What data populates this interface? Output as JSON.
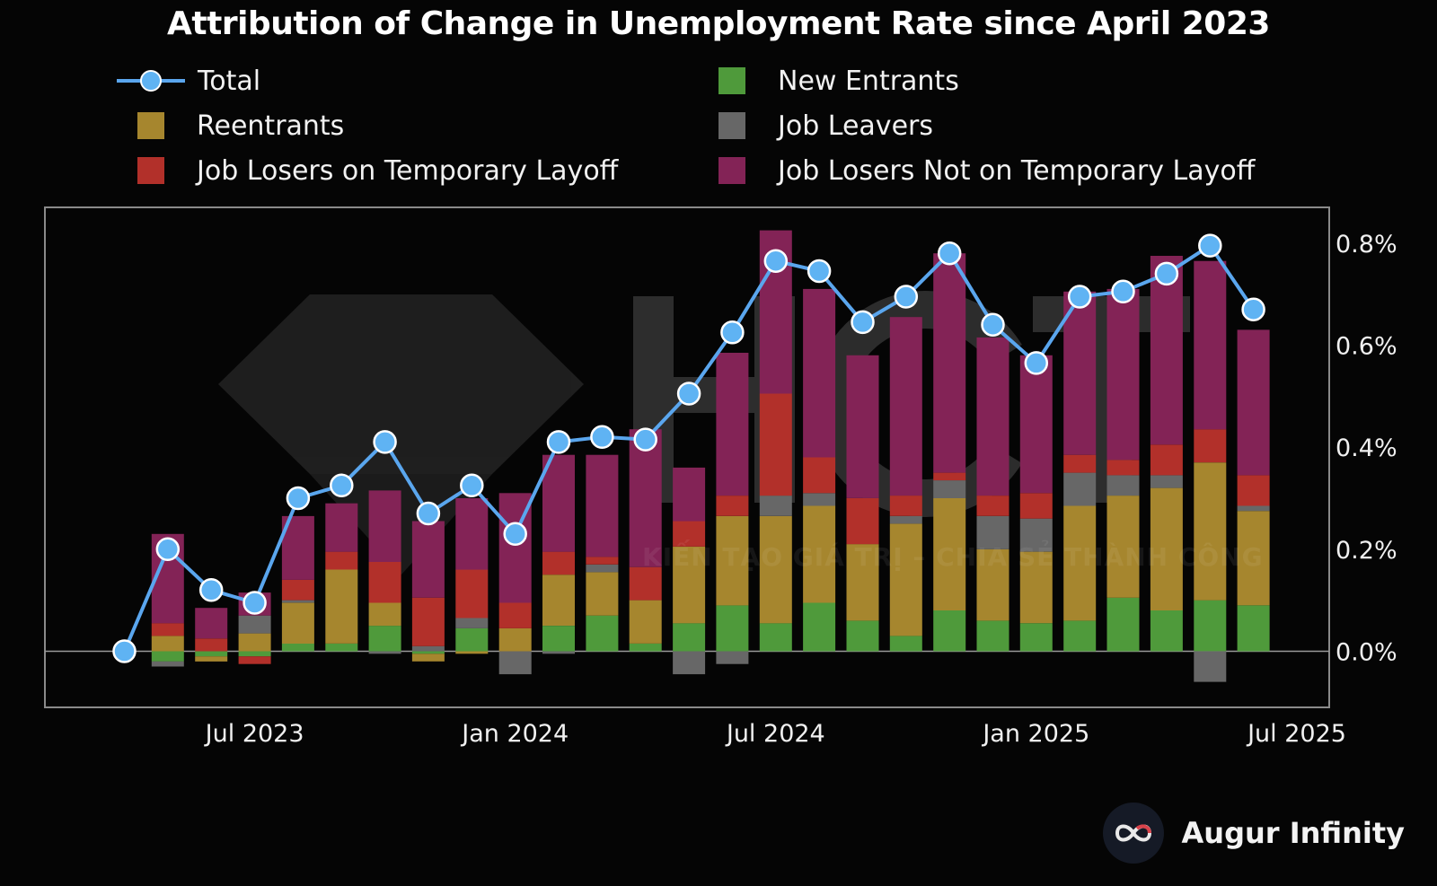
{
  "chart_data": {
    "type": "bar",
    "title": "Attribution of Change in Unemployment Rate since April 2023",
    "stacked": true,
    "categories": [
      "Apr 2023",
      "May 2023",
      "Jun 2023",
      "Jul 2023",
      "Aug 2023",
      "Sep 2023",
      "Oct 2023",
      "Nov 2023",
      "Dec 2023",
      "Jan 2024",
      "Feb 2024",
      "Mar 2024",
      "Apr 2024",
      "May 2024",
      "Jun 2024",
      "Jul 2024",
      "Aug 2024",
      "Sep 2024",
      "Oct 2024",
      "Nov 2024",
      "Dec 2024",
      "Jan 2025",
      "Feb 2025",
      "Mar 2025",
      "Apr 2025",
      "May 2025",
      "Jun 2025"
    ],
    "x_tick_labels": [
      "Jul 2023",
      "Jan 2024",
      "Jul 2024",
      "Jan 2025",
      "Jul 2025"
    ],
    "y_tick_labels": [
      "0.0%",
      "0.2%",
      "0.4%",
      "0.6%",
      "0.8%"
    ],
    "y_ticks": [
      0,
      0.2,
      0.4,
      0.6,
      0.8
    ],
    "ylim": [
      -0.11,
      0.87
    ],
    "y_unit": "%",
    "legend_placement": "top",
    "grid": false,
    "series": [
      {
        "name": "New Entrants",
        "color": "#4f9a3b",
        "values": [
          0,
          -0.02,
          -0.01,
          -0.01,
          0.015,
          0.015,
          0.05,
          -0.005,
          0.045,
          0,
          0.05,
          0.07,
          0.015,
          0.055,
          0.09,
          0.055,
          0.095,
          0.06,
          0.03,
          0.08,
          0.06,
          0.055,
          0.06,
          0.105,
          0.08,
          0.1,
          0.09
        ]
      },
      {
        "name": "Reentrants",
        "color": "#a6862e",
        "values": [
          0,
          0.03,
          -0.01,
          0.035,
          0.08,
          0.145,
          0.045,
          -0.015,
          -0.005,
          0.045,
          0.1,
          0.085,
          0.085,
          0.15,
          0.175,
          0.21,
          0.19,
          0.15,
          0.22,
          0.22,
          0.14,
          0.14,
          0.225,
          0.2,
          0.24,
          0.27,
          0.185
        ]
      },
      {
        "name": "Job Leavers",
        "color": "#676767",
        "values": [
          0,
          -0.01,
          0,
          0.035,
          0.005,
          0,
          -0.005,
          0.01,
          0.02,
          -0.045,
          -0.005,
          0.015,
          0,
          -0.045,
          -0.025,
          0.04,
          0.025,
          0,
          0.015,
          0.035,
          0.065,
          0.065,
          0.065,
          0.04,
          0.025,
          -0.06,
          0.01
        ]
      },
      {
        "name": "Job Losers on Temporary Layoff",
        "color": "#b2302a",
        "values": [
          0,
          0.025,
          0.025,
          -0.015,
          0.04,
          0.035,
          0.08,
          0.095,
          0.095,
          0.05,
          0.045,
          0.015,
          0.065,
          0.05,
          0.04,
          0.2,
          0.07,
          0.09,
          0.04,
          0.015,
          0.04,
          0.05,
          0.035,
          0.03,
          0.06,
          0.065,
          0.06
        ]
      },
      {
        "name": "Job Losers Not on Temporary Layoff",
        "color": "#832356",
        "values": [
          0,
          0.175,
          0.06,
          0.045,
          0.125,
          0.095,
          0.14,
          0.15,
          0.14,
          0.215,
          0.19,
          0.2,
          0.27,
          0.105,
          0.28,
          0.32,
          0.33,
          0.28,
          0.35,
          0.43,
          0.31,
          0.27,
          0.32,
          0.335,
          0.37,
          0.33,
          0.285
        ]
      }
    ],
    "total": {
      "name": "Total",
      "color": "#5aa6ee",
      "values": [
        0,
        0.2,
        0.12,
        0.095,
        0.3,
        0.325,
        0.41,
        0.27,
        0.325,
        0.23,
        0.41,
        0.42,
        0.415,
        0.505,
        0.625,
        0.765,
        0.745,
        0.645,
        0.695,
        0.78,
        0.64,
        0.565,
        0.695,
        0.705,
        0.74,
        0.795,
        0.67
      ]
    }
  },
  "legend": {
    "total": "Total",
    "new_entrants": "New Entrants",
    "reentrants": "Reentrants",
    "job_leavers": "Job Leavers",
    "temp_layoff": "Job Losers on Temporary Layoff",
    "not_temp_layoff": "Job Losers Not on Temporary Layoff"
  },
  "watermark": {
    "logo": "HCT",
    "tagline": "KIẾN TẠO GIÁ TRỊ – CHIA SẺ THÀNH CÔNG"
  },
  "brand": {
    "name": "Augur Infinity",
    "icon": "infinity-logo-icon"
  }
}
